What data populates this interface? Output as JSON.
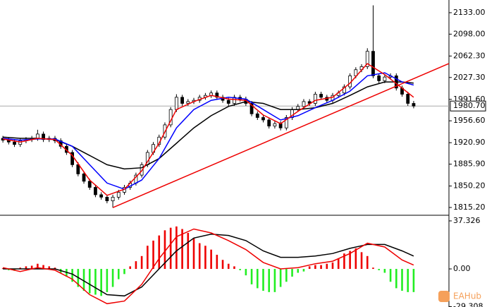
{
  "watermark": "EAHub",
  "chart_data": [
    {
      "type": "candlestick",
      "xlim": [
        -0.5,
        77.1
      ],
      "ylim": [
        1802.5,
        2153.7
      ],
      "yticks": [
        {
          "value": 2133,
          "label": "2133.00"
        },
        {
          "value": 2098,
          "label": "2098.00"
        },
        {
          "value": 2062.3,
          "label": "2062.30"
        },
        {
          "value": 2027.3,
          "label": "2027.30"
        },
        {
          "value": 1991.6,
          "label": "1991.60"
        },
        {
          "value": 1956.6,
          "label": "1956.60"
        },
        {
          "value": 1920.9,
          "label": "1920.90"
        },
        {
          "value": 1885.9,
          "label": "1885.90"
        },
        {
          "value": 1850.2,
          "label": "1850.20"
        },
        {
          "value": 1815.2,
          "label": "1815.20"
        }
      ],
      "up_color": "#ffffff",
      "down_color": "#000000",
      "candles": {
        "open": [
          1928,
          1925,
          1922,
          1918,
          1924,
          1926,
          1928,
          1935,
          1926,
          1928,
          1924,
          1915,
          1905,
          1885,
          1870,
          1858,
          1848,
          1836,
          1832,
          1826,
          1832,
          1840,
          1848,
          1855,
          1868,
          1885,
          1905,
          1918,
          1930,
          1950,
          1975,
          1995,
          1985,
          1988,
          1990,
          1995,
          1998,
          2002,
          1995,
          1990,
          1985,
          1995,
          1992,
          1985,
          1968,
          1962,
          1958,
          1948,
          1952,
          1945,
          1962,
          1975,
          1980,
          1988,
          1985,
          2000,
          1995,
          1990,
          1998,
          2002,
          2012,
          2030,
          2040,
          2045,
          2070,
          2030,
          2022,
          2028,
          2030,
          2010,
          2000,
          1985
        ],
        "high": [
          1932,
          1929,
          1926,
          1928,
          1930,
          1932,
          1942,
          1939,
          1932,
          1932,
          1928,
          1919,
          1909,
          1889,
          1874,
          1862,
          1852,
          1840,
          1836,
          1836,
          1844,
          1852,
          1859,
          1872,
          1889,
          1909,
          1922,
          1934,
          1954,
          1979,
          2000,
          1999,
          1992,
          1994,
          1999,
          2002,
          2006,
          2006,
          1999,
          1994,
          1999,
          1999,
          1996,
          1989,
          1972,
          1966,
          1962,
          1956,
          1956,
          1966,
          1979,
          1984,
          1992,
          1992,
          2004,
          2004,
          1999,
          2002,
          2006,
          2016,
          2034,
          2044,
          2049,
          2075,
          2145,
          2034,
          2032,
          2034,
          2034,
          2014,
          2004,
          1989
        ],
        "low": [
          1921,
          1918,
          1914,
          1914,
          1920,
          1922,
          1924,
          1922,
          1922,
          1920,
          1911,
          1901,
          1881,
          1866,
          1854,
          1844,
          1832,
          1828,
          1822,
          1815,
          1828,
          1836,
          1844,
          1851,
          1864,
          1881,
          1901,
          1914,
          1926,
          1946,
          1971,
          1981,
          1981,
          1984,
          1986,
          1991,
          1994,
          1991,
          1986,
          1981,
          1981,
          1988,
          1981,
          1964,
          1958,
          1954,
          1944,
          1944,
          1941,
          1941,
          1958,
          1971,
          1976,
          1981,
          1981,
          1991,
          1986,
          1986,
          1994,
          1998,
          2008,
          2026,
          2036,
          2041,
          2026,
          2018,
          2018,
          2024,
          2006,
          1996,
          1981,
          1977
        ],
        "close": [
          1925,
          1922,
          1918,
          1924,
          1926,
          1928,
          1935,
          1926,
          1928,
          1924,
          1915,
          1905,
          1885,
          1870,
          1858,
          1848,
          1836,
          1832,
          1826,
          1832,
          1840,
          1848,
          1855,
          1868,
          1885,
          1905,
          1918,
          1930,
          1950,
          1975,
          1995,
          1985,
          1988,
          1990,
          1995,
          1998,
          2002,
          1995,
          1990,
          1985,
          1995,
          1992,
          1985,
          1968,
          1962,
          1958,
          1948,
          1952,
          1945,
          1962,
          1975,
          1980,
          1988,
          1985,
          2000,
          1995,
          1990,
          1998,
          2002,
          2012,
          2030,
          2040,
          2045,
          2070,
          2030,
          2022,
          2028,
          2030,
          2010,
          2000,
          1985,
          1980.7
        ]
      },
      "series": [
        {
          "color": "#000000",
          "x": [
            0,
            3,
            6,
            9,
            12,
            15,
            18,
            21,
            24,
            27,
            30,
            33,
            36,
            39,
            42,
            45,
            48,
            51,
            54,
            57,
            60,
            63,
            66,
            69,
            71
          ],
          "values": [
            1930,
            1928,
            1928,
            1926,
            1915,
            1900,
            1885,
            1878,
            1880,
            1895,
            1920,
            1945,
            1965,
            1980,
            1988,
            1985,
            1975,
            1975,
            1978,
            1985,
            1998,
            2012,
            2020,
            2020,
            2018
          ]
        },
        {
          "color": "#0000ff",
          "x": [
            0,
            3,
            6,
            9,
            12,
            15,
            18,
            21,
            24,
            27,
            30,
            33,
            36,
            39,
            42,
            45,
            48,
            51,
            54,
            57,
            60,
            63,
            66,
            69,
            71
          ],
          "values": [
            1928,
            1925,
            1927,
            1927,
            1915,
            1885,
            1855,
            1845,
            1860,
            1895,
            1945,
            1975,
            1990,
            1995,
            1992,
            1975,
            1958,
            1965,
            1978,
            1990,
            2005,
            2030,
            2035,
            2020,
            2015
          ]
        },
        {
          "color": "#ee0000",
          "x": [
            0,
            3,
            6,
            9,
            12,
            15,
            18,
            21,
            24,
            27,
            30,
            33,
            36,
            39,
            42,
            45,
            48,
            51,
            54,
            57,
            60,
            63,
            66,
            69,
            71
          ],
          "values": [
            1927,
            1922,
            1928,
            1926,
            1900,
            1860,
            1835,
            1845,
            1875,
            1920,
            1975,
            1988,
            1998,
            1992,
            1990,
            1966,
            1952,
            1972,
            1990,
            1995,
            2018,
            2050,
            2032,
            2010,
            1995
          ]
        }
      ],
      "trendline": {
        "color": "#ee0000",
        "x": [
          19,
          77.1
        ],
        "values": [
          1815,
          2050
        ]
      },
      "current_price": {
        "value": 1980.7,
        "label": "1980.70"
      }
    },
    {
      "type": "macd",
      "xlim": [
        -0.5,
        77.1
      ],
      "ylim": [
        -29.6,
        41.7
      ],
      "yticks": [
        37.326,
        {
          "value": 0,
          "label": "0.00"
        },
        -29.308
      ],
      "pos_color": "#ee0000",
      "neg_color": "#22ee22",
      "values": [
        0.5,
        -1,
        -1.5,
        1,
        2,
        2.5,
        4,
        3,
        2,
        1,
        -3,
        -6,
        -10,
        -14,
        -17,
        -19,
        -20,
        -21,
        -18,
        -14,
        -8,
        -4,
        2,
        6,
        10,
        18,
        22,
        26,
        30,
        32,
        33,
        31,
        28,
        24,
        20,
        18,
        15,
        11,
        7,
        4,
        2,
        -1,
        -5,
        -12,
        -15,
        -17,
        -18,
        -18,
        -14,
        -10,
        -6,
        -3,
        -2,
        2,
        3,
        3,
        4,
        5,
        8,
        12,
        14,
        16,
        13,
        10,
        1,
        -1,
        -3,
        -10,
        -15,
        -17,
        -18,
        -18
      ],
      "series": [
        {
          "color": "#000000",
          "x": [
            0,
            3,
            6,
            9,
            12,
            15,
            18,
            21,
            24,
            27,
            30,
            33,
            36,
            39,
            42,
            45,
            48,
            51,
            54,
            57,
            60,
            63,
            66,
            69,
            71
          ],
          "values": [
            0,
            0,
            0,
            0,
            -4,
            -12,
            -20,
            -21,
            -14,
            0,
            14,
            24,
            27,
            26,
            22,
            14,
            9,
            9,
            10,
            12,
            16,
            19,
            19,
            14,
            10
          ]
        },
        {
          "color": "#ee0000",
          "x": [
            0,
            3,
            6,
            9,
            12,
            15,
            18,
            21,
            24,
            27,
            30,
            33,
            36,
            39,
            42,
            45,
            48,
            51,
            54,
            57,
            60,
            63,
            66,
            69,
            71
          ],
          "values": [
            1,
            -2,
            1,
            -1,
            -8,
            -20,
            -27,
            -25,
            -12,
            8,
            25,
            31,
            28,
            22,
            15,
            5,
            0,
            1,
            4,
            6,
            12,
            20,
            17,
            7,
            3
          ]
        }
      ]
    }
  ]
}
